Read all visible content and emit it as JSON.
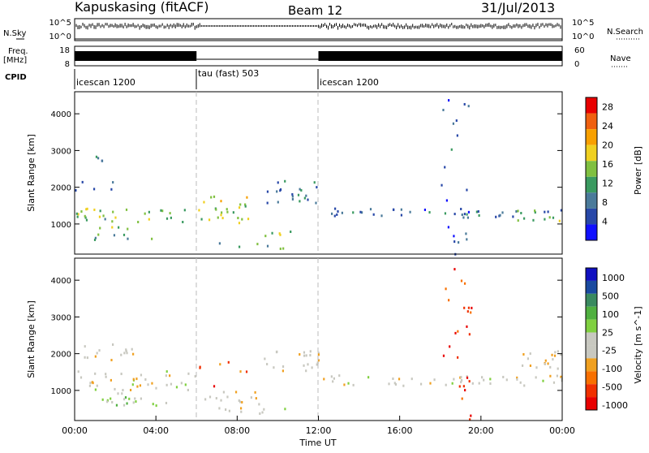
{
  "header": {
    "station": "Kapuskasing (fitACF)",
    "beam": "Beam 12",
    "date": "31/Jul/2013"
  },
  "noise_panel": {
    "left_label": "N.Sky",
    "left_ticks": [
      "10^5",
      "10^0"
    ],
    "right_label": "N.Search",
    "right_ticks": [
      "10^5",
      "10^0"
    ]
  },
  "freq_panel": {
    "left_label_1": "Freq.",
    "left_label_2": "[MHz]",
    "left_ticks": [
      "18",
      "8"
    ],
    "right_label": "Nave",
    "right_ticks": [
      "60",
      "0"
    ]
  },
  "cpid_panel": {
    "label": "CPID",
    "segments": [
      {
        "text": "icescan 1200",
        "start_h": 0,
        "end_h": 6
      },
      {
        "text": "tau (fast) 503",
        "start_h": 6,
        "end_h": 12
      },
      {
        "text": "icescan 1200",
        "start_h": 12,
        "end_h": 24
      }
    ]
  },
  "colors": {
    "power_scale": [
      "#1010ff",
      "#2848a8",
      "#4a7a9a",
      "#3a9a60",
      "#80c040",
      "#f0d020",
      "#f8a000",
      "#f06010",
      "#e80000"
    ],
    "velocity_scale": [
      "#e80000",
      "#f03000",
      "#f87000",
      "#f0a020",
      "#c8c8c0",
      "#c8c8c0",
      "#80d040",
      "#50b040",
      "#3a8a60",
      "#1a4aa0",
      "#1010c0"
    ]
  },
  "chart_data": [
    {
      "type": "heatmap",
      "panel": "power",
      "ylabel": "Slant Range [km]",
      "xlim": [
        0,
        24
      ],
      "ylim": [
        180,
        4600
      ],
      "yticks": [
        1000,
        2000,
        3000,
        4000
      ],
      "colorbar_label": "Power [dB]",
      "colorbar_ticks": [
        "28",
        "24",
        "20",
        "16",
        "12",
        "8",
        "4"
      ],
      "colorbar_range": [
        0,
        30
      ],
      "features": [
        {
          "t0": 0.0,
          "t1": 6.0,
          "r0": 1050,
          "r1": 1450,
          "level": 0.55
        },
        {
          "t0": 0.0,
          "t1": 3.0,
          "r0": 1900,
          "r1": 2300,
          "level": 0.25
        },
        {
          "t0": 0.8,
          "t1": 4.5,
          "r0": 600,
          "r1": 950,
          "level": 0.45
        },
        {
          "t0": 0.8,
          "t1": 1.6,
          "r0": 2700,
          "r1": 3100,
          "level": 0.3
        },
        {
          "t0": 6.0,
          "t1": 8.6,
          "r0": 1000,
          "r1": 1800,
          "level": 0.6
        },
        {
          "t0": 6.2,
          "t1": 10.5,
          "r0": 350,
          "r1": 550,
          "level": 0.5
        },
        {
          "t0": 8.8,
          "t1": 10.6,
          "r0": 650,
          "r1": 850,
          "level": 0.55
        },
        {
          "t0": 9.2,
          "t1": 12.0,
          "r0": 1600,
          "r1": 2200,
          "level": 0.3
        },
        {
          "t0": 12.0,
          "t1": 24.0,
          "r0": 1200,
          "r1": 1450,
          "level": 0.3
        },
        {
          "t0": 21.5,
          "t1": 24.0,
          "r0": 1100,
          "r1": 1400,
          "level": 0.5
        },
        {
          "t0": 18.0,
          "t1": 19.5,
          "r0": 200,
          "r1": 4400,
          "level": 0.2
        }
      ]
    },
    {
      "type": "heatmap",
      "panel": "velocity",
      "ylabel": "Slant Range [km]",
      "xlabel": "Time UT",
      "xlim": [
        0,
        24
      ],
      "ylim": [
        180,
        4600
      ],
      "xticks": [
        "00:00",
        "04:00",
        "08:00",
        "12:00",
        "16:00",
        "20:00",
        "00:00"
      ],
      "yticks": [
        1000,
        2000,
        3000,
        4000
      ],
      "colorbar_label": "Velocity [m s^-1]",
      "colorbar_ticks": [
        "1000",
        "500",
        "100",
        "25",
        "-25",
        "-100",
        "-500",
        "-1000"
      ],
      "features": [
        {
          "t0": 0.0,
          "t1": 6.0,
          "r0": 1000,
          "r1": 1550,
          "level": 0.5
        },
        {
          "t0": 0.3,
          "t1": 3.0,
          "r0": 1800,
          "r1": 2300,
          "level": 0.45
        },
        {
          "t0": 0.8,
          "t1": 4.5,
          "r0": 600,
          "r1": 950,
          "level": 0.6
        },
        {
          "t0": 6.0,
          "t1": 8.6,
          "r0": 1100,
          "r1": 1800,
          "level": 0.2
        },
        {
          "t0": 6.0,
          "t1": 9.5,
          "r0": 650,
          "r1": 1000,
          "level": 0.45
        },
        {
          "t0": 6.2,
          "t1": 10.5,
          "r0": 350,
          "r1": 550,
          "level": 0.5
        },
        {
          "t0": 9.2,
          "t1": 12.0,
          "r0": 1500,
          "r1": 2100,
          "level": 0.45
        },
        {
          "t0": 12.0,
          "t1": 24.0,
          "r0": 1150,
          "r1": 1450,
          "level": 0.5
        },
        {
          "t0": 21.5,
          "t1": 24.0,
          "r0": 1600,
          "r1": 2100,
          "level": 0.45
        },
        {
          "t0": 18.0,
          "t1": 19.5,
          "r0": 200,
          "r1": 4400,
          "level": 0.15
        }
      ]
    }
  ]
}
